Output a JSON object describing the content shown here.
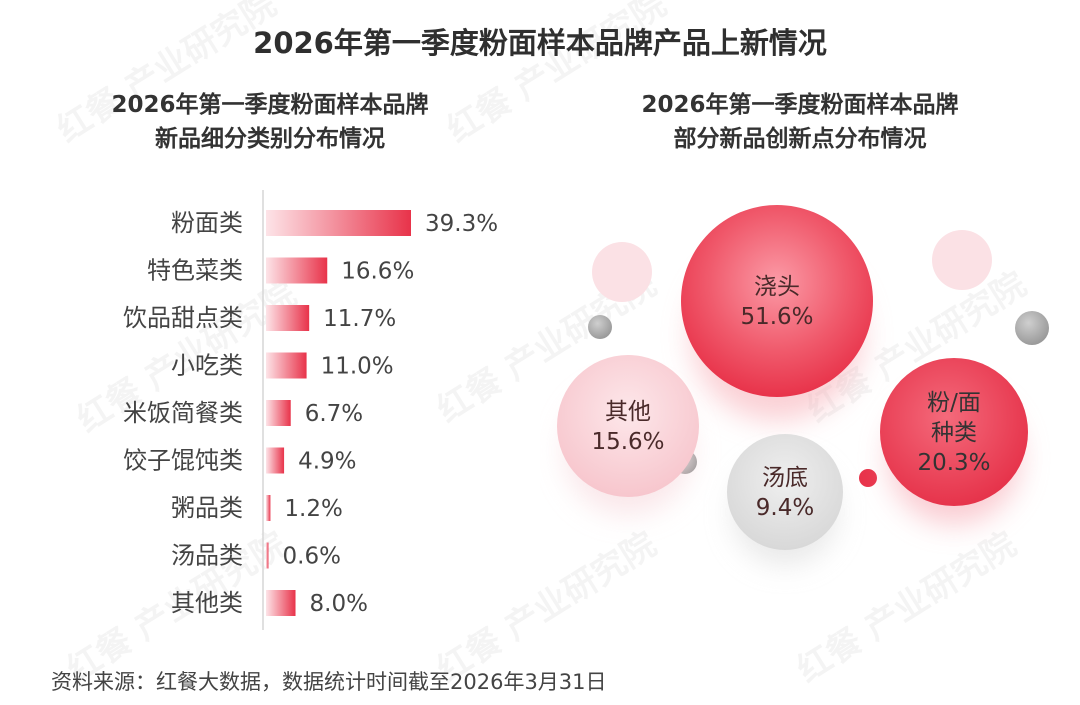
{
  "title": "2026年第一季度粉面样本品牌产品上新情况",
  "watermark_text": "红餐 产业研究院",
  "left_subtitle": {
    "line1": "2026年第一季度粉面样本品牌",
    "line2": "新品细分类别分布情况"
  },
  "right_subtitle": {
    "line1": "2026年第一季度粉面样本品牌",
    "line2": "部分新品创新点分布情况"
  },
  "source": "资料来源：红餐大数据，数据统计时间截至2026年3月31日",
  "colors": {
    "accent": "#e8334a",
    "accent_light": "#f9d3d8",
    "gray_bubble": "#e2e2e2"
  },
  "chart_data": [
    {
      "type": "bar",
      "orientation": "horizontal",
      "categories": [
        "粉面类",
        "特色菜类",
        "饮品甜点类",
        "小吃类",
        "米饭简餐类",
        "饺子馄饨类",
        "粥品类",
        "汤品类",
        "其他类"
      ],
      "values": [
        39.3,
        16.6,
        11.7,
        11.0,
        6.7,
        4.9,
        1.2,
        0.6,
        8.0
      ],
      "value_labels": [
        "39.3%",
        "16.6%",
        "11.7%",
        "11.0%",
        "6.7%",
        "4.9%",
        "1.2%",
        "0.6%",
        "8.0%"
      ],
      "unit": "%"
    },
    {
      "type": "bubble",
      "items": [
        {
          "name": "浇头",
          "value": 51.6,
          "label": "51.6%"
        },
        {
          "name": "粉/面\n种类",
          "value": 20.3,
          "label": "20.3%"
        },
        {
          "name": "其他",
          "value": 15.6,
          "label": "15.6%"
        },
        {
          "name": "汤底",
          "value": 9.4,
          "label": "9.4%"
        }
      ]
    }
  ]
}
